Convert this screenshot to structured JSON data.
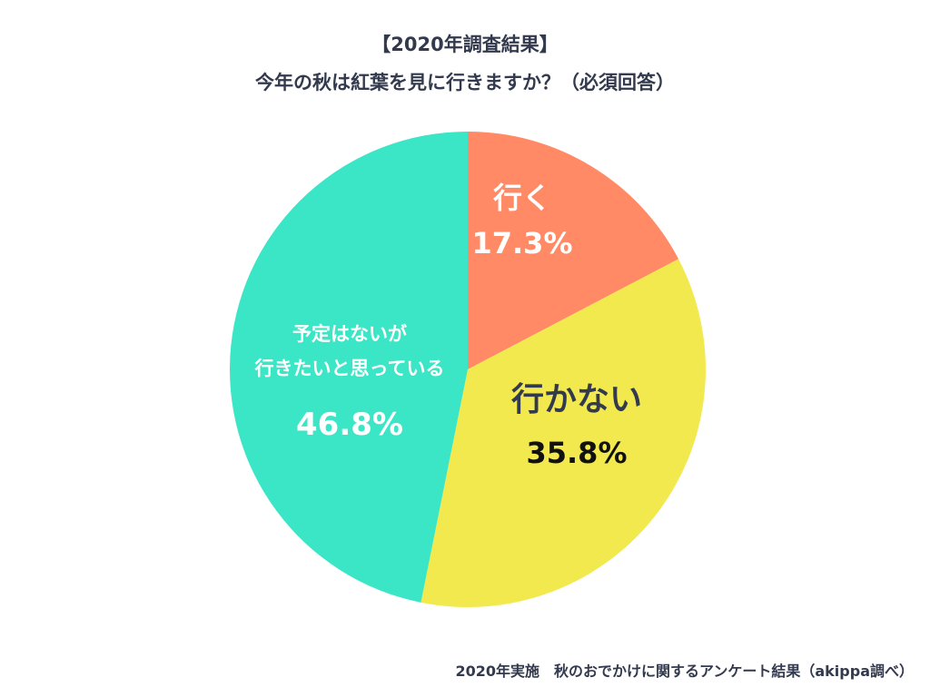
{
  "title_lines": [
    "【2020年調査結果】",
    "今年の秋は紅葉を見に行きますか？（必須回答）"
  ],
  "footer": "2020年実施　秋のおでかけに関するアンケート結果（akippa調べ）",
  "chart_data": {
    "type": "pie",
    "title": "【2020年調査結果】今年の秋は紅葉を見に行きますか？（必須回答）",
    "slices": [
      {
        "label": "行く",
        "label_lines": [
          "行く"
        ],
        "value": 17.3,
        "value_label": "17.3%",
        "color": "#ff8a65",
        "label_color": "#ffffff"
      },
      {
        "label": "行かない",
        "label_lines": [
          "行かない"
        ],
        "value": 35.8,
        "value_label": "35.8%",
        "color": "#f2e94e",
        "label_color": "#333a4d",
        "value_color": "#111111"
      },
      {
        "label": "予定はないが行きたいと思っている",
        "label_lines": [
          "予定はないが",
          "行きたいと思っている"
        ],
        "value": 46.8,
        "value_label": "46.8%",
        "color": "#3ae6c6",
        "label_color": "#ffffff"
      }
    ],
    "start_angle": "12 o'clock",
    "direction": "clockwise",
    "legend": "none"
  }
}
